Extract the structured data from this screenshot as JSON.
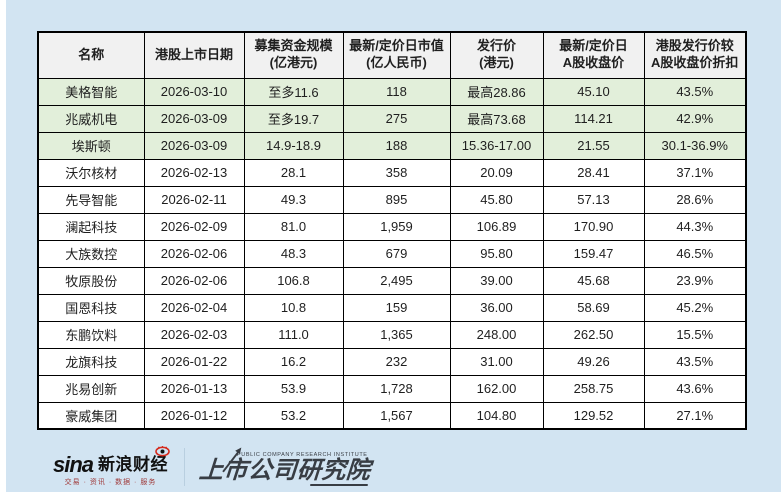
{
  "palette": {
    "page_background": "#d2e4f2",
    "highlight_row": "#e2efda",
    "header_row": "#f1f1f1",
    "border": "#000000",
    "sina_red": "#d52b1e"
  },
  "table": {
    "headers": [
      "名称",
      "港股上市日期",
      "募集资金规模\n(亿港元)",
      "最新/定价日市值\n(亿人民币)",
      "发行价\n(港元)",
      "最新/定价日\nA股收盘价",
      "港股发行价较\nA股收盘价折扣"
    ],
    "rows": [
      {
        "name": "美格智能",
        "date": "2026-03-10",
        "raise": "至多11.6",
        "mktcap": "118",
        "issue_price": "最高28.86",
        "a_close": "45.10",
        "discount": "43.5%",
        "highlight": true
      },
      {
        "name": "兆威机电",
        "date": "2026-03-09",
        "raise": "至多19.7",
        "mktcap": "275",
        "issue_price": "最高73.68",
        "a_close": "114.21",
        "discount": "42.9%",
        "highlight": true
      },
      {
        "name": "埃斯顿",
        "date": "2026-03-09",
        "raise": "14.9-18.9",
        "mktcap": "188",
        "issue_price": "15.36-17.00",
        "a_close": "21.55",
        "discount": "30.1-36.9%",
        "highlight": true
      },
      {
        "name": "沃尔核材",
        "date": "2026-02-13",
        "raise": "28.1",
        "mktcap": "358",
        "issue_price": "20.09",
        "a_close": "28.41",
        "discount": "37.1%",
        "highlight": false
      },
      {
        "name": "先导智能",
        "date": "2026-02-11",
        "raise": "49.3",
        "mktcap": "895",
        "issue_price": "45.80",
        "a_close": "57.13",
        "discount": "28.6%",
        "highlight": false
      },
      {
        "name": "澜起科技",
        "date": "2026-02-09",
        "raise": "81.0",
        "mktcap": "1,959",
        "issue_price": "106.89",
        "a_close": "170.90",
        "discount": "44.3%",
        "highlight": false
      },
      {
        "name": "大族数控",
        "date": "2026-02-06",
        "raise": "48.3",
        "mktcap": "679",
        "issue_price": "95.80",
        "a_close": "159.47",
        "discount": "46.5%",
        "highlight": false
      },
      {
        "name": "牧原股份",
        "date": "2026-02-06",
        "raise": "106.8",
        "mktcap": "2,495",
        "issue_price": "39.00",
        "a_close": "45.68",
        "discount": "23.9%",
        "highlight": false
      },
      {
        "name": "国恩科技",
        "date": "2026-02-04",
        "raise": "10.8",
        "mktcap": "159",
        "issue_price": "36.00",
        "a_close": "58.69",
        "discount": "45.2%",
        "highlight": false
      },
      {
        "name": "东鹏饮料",
        "date": "2026-02-03",
        "raise": "111.0",
        "mktcap": "1,365",
        "issue_price": "248.00",
        "a_close": "262.50",
        "discount": "15.5%",
        "highlight": false
      },
      {
        "name": "龙旗科技",
        "date": "2026-01-22",
        "raise": "16.2",
        "mktcap": "232",
        "issue_price": "31.00",
        "a_close": "49.26",
        "discount": "43.5%",
        "highlight": false
      },
      {
        "name": "兆易创新",
        "date": "2026-01-13",
        "raise": "53.9",
        "mktcap": "1,728",
        "issue_price": "162.00",
        "a_close": "258.75",
        "discount": "43.6%",
        "highlight": false
      },
      {
        "name": "豪威集团",
        "date": "2026-01-12",
        "raise": "53.2",
        "mktcap": "1,567",
        "issue_price": "104.80",
        "a_close": "129.52",
        "discount": "27.1%",
        "highlight": false
      }
    ]
  },
  "footer": {
    "sina_wordmark": "sina",
    "sina_brand": "新浪财经",
    "sina_tagline": "交易 · 资讯 · 数据 · 服务",
    "institute_en": "PUBLIC COMPANY RESEARCH INSTITUTE",
    "institute_cn": "上市公司研究院"
  }
}
